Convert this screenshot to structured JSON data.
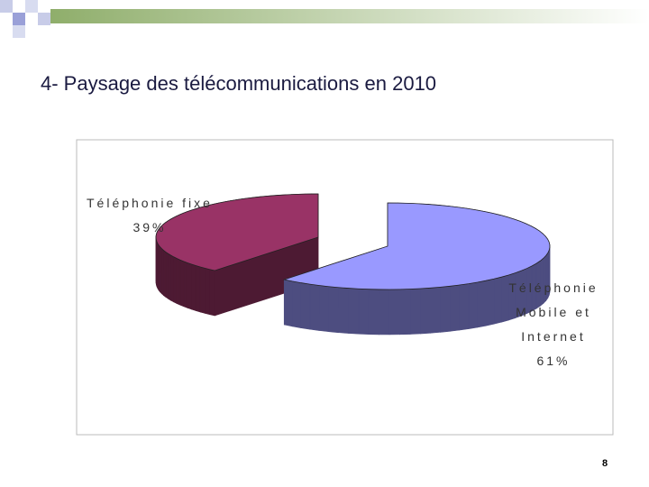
{
  "chart_data": {
    "type": "pie",
    "title": "4- Paysage des télécommunications en 2010",
    "categories": [
      "Téléphonie fixe",
      "Téléphonie Mobile et Internet"
    ],
    "values": [
      39,
      61
    ],
    "value_labels": [
      "39%",
      "61%"
    ],
    "colors": [
      "#993366",
      "#9999ff"
    ]
  },
  "page_number": "8"
}
